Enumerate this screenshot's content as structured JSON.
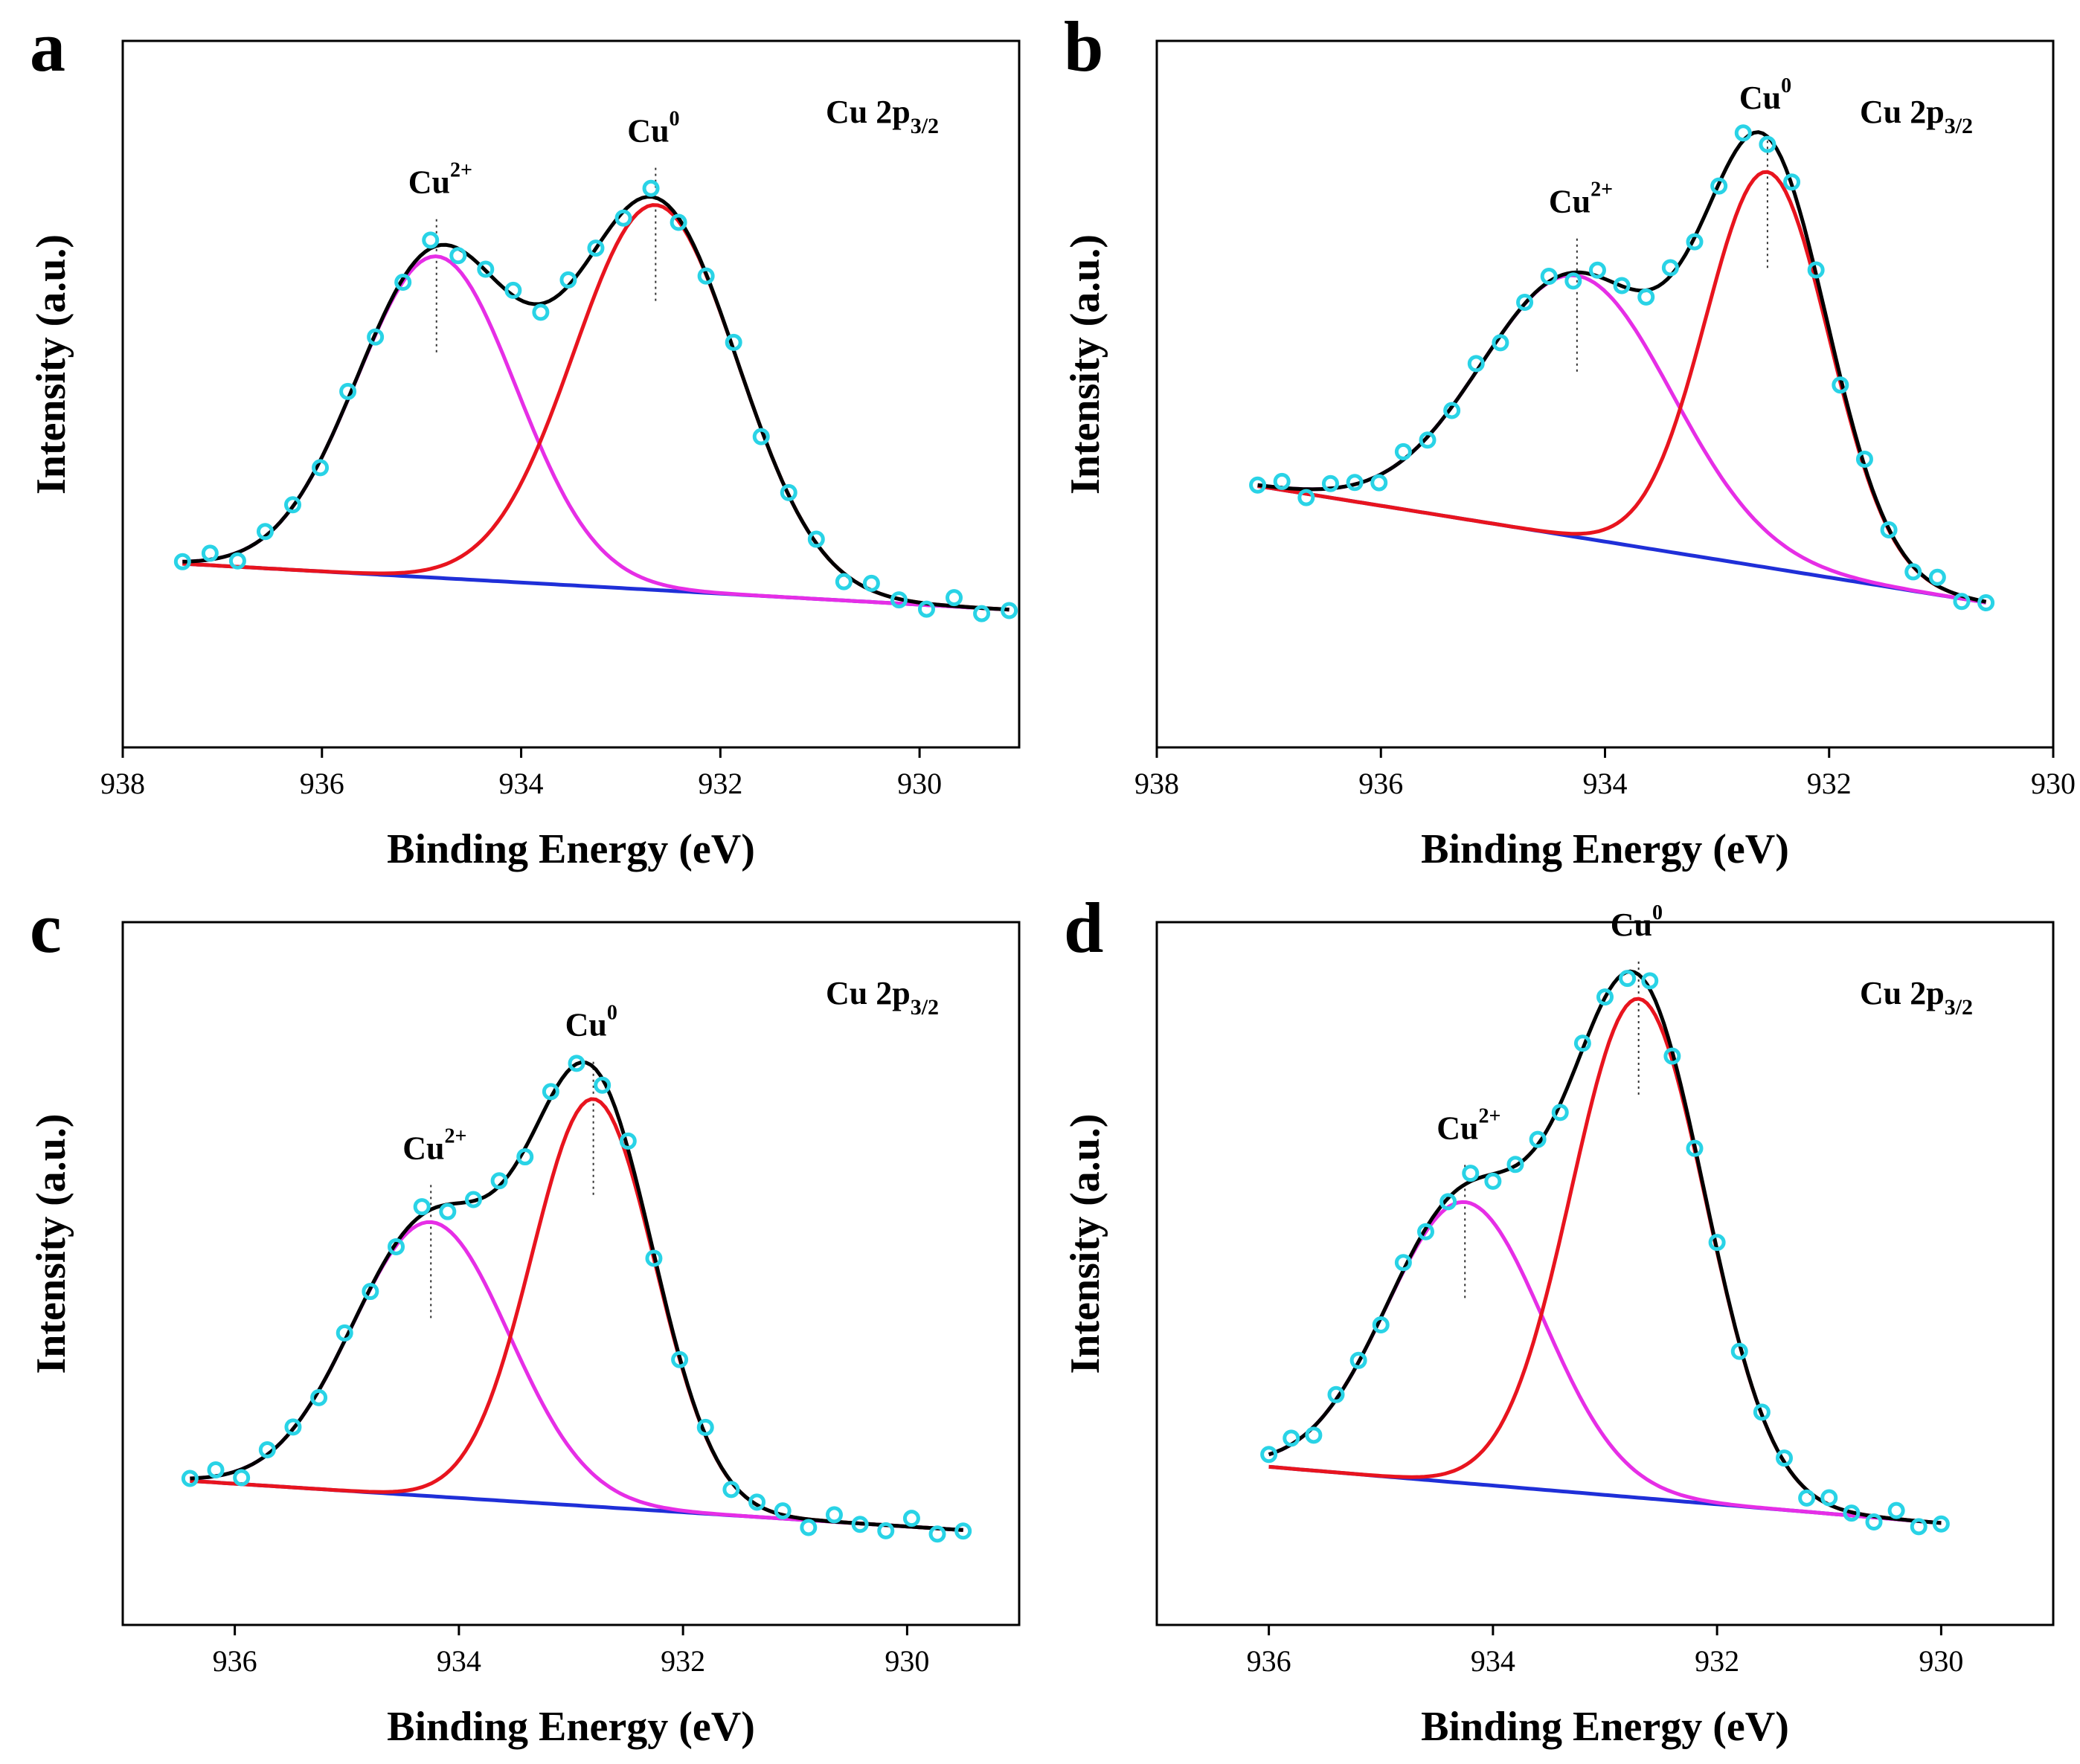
{
  "chart_data": [
    {
      "panel": "a",
      "type": "line",
      "spectrum_label": {
        "main": "Cu 2p",
        "sub": "3/2"
      },
      "xlabel": "Binding Energy (eV)",
      "ylabel": "Intensity (a.u.)",
      "xlim": [
        938,
        929
      ],
      "ylim": [
        0,
        1
      ],
      "xticks": [
        938,
        936,
        934,
        932,
        930
      ],
      "x_start": 937.4,
      "x_end": 929.1,
      "background": {
        "left": 0.26,
        "right": 0.195
      },
      "peaks": [
        {
          "name": "Cu2+",
          "label_main": "Cu",
          "label_sup": "2+",
          "center": 934.85,
          "height": 0.455,
          "width": 0.8
        },
        {
          "name": "Cu0",
          "label_main": "Cu",
          "label_sup": "0",
          "center": 932.65,
          "height": 0.545,
          "width": 0.82
        }
      ],
      "series": [
        {
          "name": "Experimental data",
          "style": "circle",
          "color": "#29d3e6"
        },
        {
          "name": "Fitted envelope",
          "color": "#000000"
        },
        {
          "name": "Cu2+ component",
          "color": "#e62ee6"
        },
        {
          "name": "Cu0 component",
          "color": "#e8141e"
        },
        {
          "name": "Background",
          "color": "#1f2fd8"
        }
      ]
    },
    {
      "panel": "b",
      "type": "line",
      "spectrum_label": {
        "main": "Cu 2p",
        "sub": "3/2"
      },
      "xlabel": "Binding Energy (eV)",
      "ylabel": "Intensity (a.u.)",
      "xlim": [
        938,
        930
      ],
      "ylim": [
        0,
        1
      ],
      "xticks": [
        938,
        936,
        934,
        932,
        930
      ],
      "x_start": 937.1,
      "x_end": 930.6,
      "background": {
        "left": 0.37,
        "right": 0.205
      },
      "peaks": [
        {
          "name": "Cu2+",
          "label_main": "Cu",
          "label_sup": "2+",
          "center": 934.25,
          "height": 0.37,
          "width": 0.85
        },
        {
          "name": "Cu0",
          "label_main": "Cu",
          "label_sup": "0",
          "center": 932.55,
          "height": 0.56,
          "width": 0.55
        }
      ],
      "series": [
        {
          "name": "Experimental data",
          "style": "circle",
          "color": "#29d3e6"
        },
        {
          "name": "Fitted envelope",
          "color": "#000000"
        },
        {
          "name": "Cu2+ component",
          "color": "#e62ee6"
        },
        {
          "name": "Cu0 component",
          "color": "#e8141e"
        },
        {
          "name": "Background",
          "color": "#1f2fd8"
        }
      ]
    },
    {
      "panel": "c",
      "type": "line",
      "spectrum_label": {
        "main": "Cu 2p",
        "sub": "3/2"
      },
      "xlabel": "Binding Energy (eV)",
      "ylabel": "Intensity (a.u.)",
      "xlim": [
        937,
        929
      ],
      "ylim": [
        0,
        1
      ],
      "xticks": [
        936,
        934,
        932,
        930
      ],
      "x_start": 936.4,
      "x_end": 929.5,
      "background": {
        "left": 0.205,
        "right": 0.135
      },
      "peaks": [
        {
          "name": "Cu2+",
          "label_main": "Cu",
          "label_sup": "2+",
          "center": 934.25,
          "height": 0.39,
          "width": 0.7
        },
        {
          "name": "Cu0",
          "label_main": "Cu",
          "label_sup": "0",
          "center": 932.8,
          "height": 0.58,
          "width": 0.55
        }
      ],
      "series": [
        {
          "name": "Experimental data",
          "style": "circle",
          "color": "#29d3e6"
        },
        {
          "name": "Fitted envelope",
          "color": "#000000"
        },
        {
          "name": "Cu2+ component",
          "color": "#e62ee6"
        },
        {
          "name": "Cu0 component",
          "color": "#e8141e"
        },
        {
          "name": "Background",
          "color": "#1f2fd8"
        }
      ]
    },
    {
      "panel": "d",
      "type": "line",
      "spectrum_label": {
        "main": "Cu 2p",
        "sub": "3/2"
      },
      "xlabel": "Binding Energy (eV)",
      "ylabel": "Intensity (a.u.)",
      "xlim": [
        937,
        929
      ],
      "ylim": [
        0,
        1
      ],
      "xticks": [
        936,
        934,
        932,
        930
      ],
      "x_start": 936.0,
      "x_end": 930.0,
      "background": {
        "left": 0.225,
        "right": 0.145
      },
      "peaks": [
        {
          "name": "Cu2+",
          "label_main": "Cu",
          "label_sup": "2+",
          "center": 934.25,
          "height": 0.4,
          "width": 0.7
        },
        {
          "name": "Cu0",
          "label_main": "Cu",
          "label_sup": "0",
          "center": 932.7,
          "height": 0.71,
          "width": 0.6
        }
      ],
      "series": [
        {
          "name": "Experimental data",
          "style": "circle",
          "color": "#29d3e6"
        },
        {
          "name": "Fitted envelope",
          "color": "#000000"
        },
        {
          "name": "Cu2+ component",
          "color": "#e62ee6"
        },
        {
          "name": "Cu0 component",
          "color": "#e8141e"
        },
        {
          "name": "Background",
          "color": "#1f2fd8"
        }
      ]
    }
  ]
}
